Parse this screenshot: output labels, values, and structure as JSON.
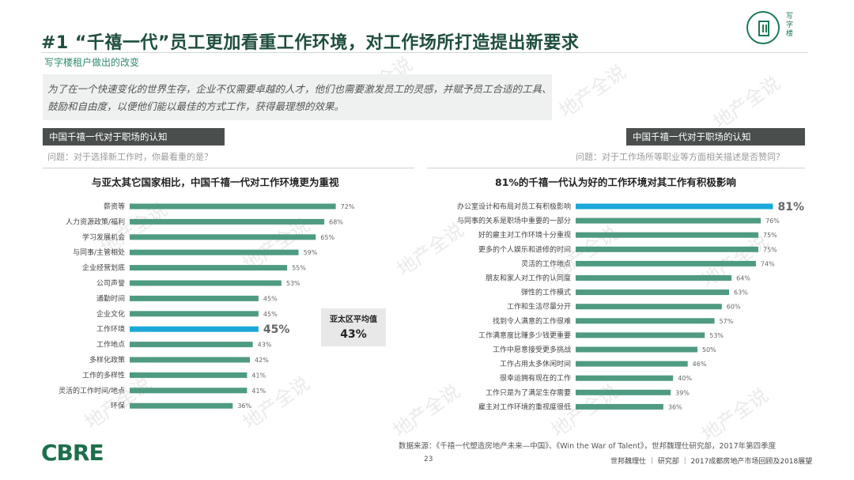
{
  "header": {
    "title": "#1 “千禧一代”员工更加看重工作环境，对工作场所打造提出新要求",
    "subtitle": "写字楼租户做出的改变",
    "badge_text": "写字楼"
  },
  "intro": "为了在一个快速变化的世界生存，企业不仅需要卓越的人才，他们也需要激发员工的灵感，并赋予员工合适的工具、鼓励和自由度，以便他们能以最佳的方式工作，获得最理想的效果。",
  "left_panel": {
    "heading": "中国千禧一代对于职场的认知",
    "question": "问题：对于选择新工作时，你最看重的是？",
    "chart_title": "与亚太其它国家相比，中国千禧一代对工作环境更为重视",
    "avg_label": "亚太区平均值",
    "avg_value": "43%"
  },
  "right_panel": {
    "heading": "中国千禧一代对于职场的认知",
    "question": "问题：对于工作场所等职业等方面相关描述是否赞同？",
    "chart_title": "81%的千禧一代认为好的工作环境对其工作有积极影响"
  },
  "colors": {
    "bar": "#4f9b82",
    "highlight": "#1ba8d9",
    "highlight_text": "#c0282d",
    "brand": "#1e6f4c"
  },
  "chart_data": [
    {
      "type": "bar",
      "orientation": "horizontal",
      "title": "与亚太其它国家相比，中国千禧一代对工作环境更为重视",
      "categories": [
        "薪资等",
        "人力资源政策/福利",
        "学习发展机会",
        "与同事/主管相处",
        "企业经营划底",
        "公司声誉",
        "通勤时间",
        "企业文化",
        "工作环境",
        "工作地点",
        "多样化政策",
        "工作的多样性",
        "灵活的工作时间/地点",
        "环保"
      ],
      "values": [
        72,
        68,
        65,
        59,
        55,
        53,
        45,
        45,
        45,
        43,
        42,
        41,
        41,
        36
      ],
      "labels": [
        "72%",
        "68%",
        "65%",
        "59%",
        "55%",
        "53%",
        "45%",
        "45%",
        "45%",
        "43%",
        "42%",
        "41%",
        "41%",
        "36%"
      ],
      "highlight_index": 8,
      "unit": "%"
    },
    {
      "type": "bar",
      "orientation": "horizontal",
      "title": "81%的千禧一代认为好的工作环境对其工作有积极影响",
      "categories": [
        "办公室设计和布局对员工有积极影响",
        "与同事的关系是职场中重要的一部分",
        "好的雇主对工作环境十分重视",
        "更多的个人娱乐和进修的时间",
        "灵活的工作地点",
        "朋友和家人对工作的认同度",
        "弹性的工作模式",
        "工作和生活尽量分开",
        "找到令人满意的工作很难",
        "工作满意度比赚多少钱更重要",
        "工作中愿意接受更多挑战",
        "工作占用太多休闲时间",
        "很幸运拥有现在的工作",
        "工作只是为了满足生存需要",
        "雇主对工作环境的重视度很低"
      ],
      "values": [
        81,
        76,
        75,
        75,
        74,
        64,
        63,
        60,
        57,
        53,
        50,
        46,
        40,
        39,
        36
      ],
      "labels": [
        "81%",
        "76%",
        "75%",
        "75%",
        "74%",
        "64%",
        "63%",
        "60%",
        "57%",
        "53%",
        "50%",
        "46%",
        "40%",
        "39%",
        "36%"
      ],
      "highlight_index": 0,
      "unit": "%"
    }
  ],
  "watermark": "地产全说",
  "source": "数据来源：《千禧一代塑造房地产未来—中国》、《Win the War of Talent》，世邦魏理仕研究部，2017年第四季度",
  "footer": {
    "page": "23",
    "text": "世邦魏理仕 ｜ 研究部 ｜ 2017成都房地产市场回顾及2018展望",
    "logo": "CBRE"
  }
}
